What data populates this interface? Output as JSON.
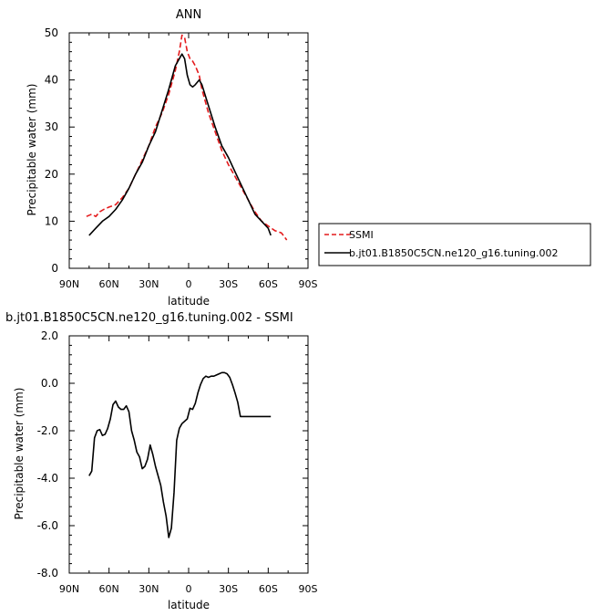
{
  "chart_data": [
    {
      "type": "line",
      "title": "ANN",
      "xlabel": "latitude",
      "ylabel": "Precipitable water (mm)",
      "xlim": [
        90,
        -90
      ],
      "ylim": [
        0,
        50
      ],
      "x_ticks": [
        {
          "value": 90,
          "label": "90N"
        },
        {
          "value": 60,
          "label": "60N"
        },
        {
          "value": 30,
          "label": "30N"
        },
        {
          "value": 0,
          "label": "0"
        },
        {
          "value": -30,
          "label": "30S"
        },
        {
          "value": -60,
          "label": "60S"
        },
        {
          "value": -90,
          "label": "90S"
        }
      ],
      "y_ticks": [
        {
          "value": 0,
          "label": "0"
        },
        {
          "value": 10,
          "label": "10"
        },
        {
          "value": 20,
          "label": "20"
        },
        {
          "value": 30,
          "label": "30"
        },
        {
          "value": 40,
          "label": "40"
        },
        {
          "value": 50,
          "label": "50"
        }
      ],
      "grid": false,
      "legend": "right",
      "series": [
        {
          "name": "SSMI",
          "color": "#e41a1c",
          "dash": "dashed",
          "x": [
            77,
            73,
            70,
            67,
            64,
            60,
            55,
            50,
            45,
            40,
            35,
            30,
            25,
            20,
            15,
            10,
            7,
            5,
            3,
            1,
            -1,
            -3,
            -5,
            -8,
            -10,
            -15,
            -20,
            -25,
            -30,
            -35,
            -40,
            -45,
            -50,
            -55,
            -60,
            -65,
            -70,
            -74
          ],
          "values": [
            11.0,
            11.5,
            11.0,
            12.0,
            12.5,
            13.0,
            13.5,
            15.0,
            17.0,
            20.0,
            23.0,
            26.0,
            30.0,
            33.0,
            37.0,
            42.0,
            46.0,
            49.5,
            49.0,
            46.0,
            44.5,
            44.0,
            43.0,
            41.0,
            38.0,
            33.0,
            29.0,
            25.0,
            22.0,
            19.5,
            17.0,
            14.5,
            12.0,
            10.0,
            9.0,
            8.0,
            7.5,
            6.0
          ]
        },
        {
          "name": "b.jt01.B1850C5CN.ne120_g16.tuning.002",
          "color": "#000000",
          "dash": "solid",
          "x": [
            75,
            70,
            65,
            60,
            55,
            50,
            45,
            40,
            35,
            30,
            25,
            20,
            15,
            10,
            5,
            3,
            1,
            -1,
            -3,
            -5,
            -8,
            -10,
            -15,
            -20,
            -25,
            -30,
            -35,
            -40,
            -45,
            -50,
            -55,
            -60,
            -62
          ],
          "values": [
            7.0,
            8.5,
            10.0,
            11.0,
            12.5,
            14.5,
            17.0,
            20.0,
            22.5,
            26.0,
            29.0,
            33.5,
            38.0,
            43.0,
            45.5,
            44.5,
            41.0,
            39.0,
            38.5,
            39.0,
            40.0,
            39.0,
            34.5,
            30.0,
            26.0,
            23.5,
            20.5,
            17.5,
            14.5,
            11.5,
            10.0,
            8.5,
            7.0
          ]
        }
      ]
    },
    {
      "type": "line",
      "title": "b.jt01.B1850C5CN.ne120_g16.tuning.002 - SSMI",
      "xlabel": "latitude",
      "ylabel": "Precipitable water (mm)",
      "xlim": [
        90,
        -90
      ],
      "ylim": [
        -8,
        2
      ],
      "x_ticks": [
        {
          "value": 90,
          "label": "90N"
        },
        {
          "value": 60,
          "label": "60N"
        },
        {
          "value": 30,
          "label": "30N"
        },
        {
          "value": 0,
          "label": "0"
        },
        {
          "value": -30,
          "label": "30S"
        },
        {
          "value": -60,
          "label": "60S"
        },
        {
          "value": -90,
          "label": "90S"
        }
      ],
      "y_ticks": [
        {
          "value": 2,
          "label": "2.0"
        },
        {
          "value": 0,
          "label": "0.0"
        },
        {
          "value": -2,
          "label": "-2.0"
        },
        {
          "value": -4,
          "label": "-4.0"
        },
        {
          "value": -6,
          "label": "-6.0"
        },
        {
          "value": -8,
          "label": "-8.0"
        }
      ],
      "grid": false,
      "series": [
        {
          "name": "",
          "color": "#000000",
          "dash": "solid",
          "x": [
            75,
            73,
            71,
            69,
            67,
            65,
            63,
            61,
            59,
            57,
            55,
            53,
            51,
            49,
            47,
            45,
            43,
            41,
            39,
            37,
            35,
            33,
            31,
            29,
            27,
            25,
            23,
            21,
            19,
            17,
            15,
            13,
            11,
            9,
            7,
            5,
            3,
            1,
            -1,
            -3,
            -5,
            -7,
            -9,
            -11,
            -13,
            -15,
            -17,
            -19,
            -21,
            -23,
            -25,
            -27,
            -29,
            -31,
            -33,
            -35,
            -37,
            -39,
            -41,
            -43,
            -45,
            -47,
            -49,
            -51,
            -53,
            -55,
            -57,
            -59,
            -61,
            -62
          ],
          "values": [
            -3.9,
            -3.7,
            -2.3,
            -2.0,
            -1.95,
            -2.2,
            -2.15,
            -1.9,
            -1.5,
            -0.9,
            -0.75,
            -1.0,
            -1.1,
            -1.1,
            -0.95,
            -1.2,
            -2.0,
            -2.4,
            -2.9,
            -3.1,
            -3.6,
            -3.5,
            -3.2,
            -2.6,
            -3.0,
            -3.5,
            -3.9,
            -4.3,
            -5.0,
            -5.6,
            -6.5,
            -6.1,
            -4.6,
            -2.4,
            -1.9,
            -1.7,
            -1.6,
            -1.5,
            -1.05,
            -1.1,
            -0.85,
            -0.4,
            -0.05,
            0.2,
            0.3,
            0.25,
            0.3,
            0.3,
            0.35,
            0.4,
            0.45,
            0.45,
            0.4,
            0.25,
            -0.05,
            -0.4,
            -0.8,
            -1.4,
            -1.4,
            -1.4,
            -1.4,
            -1.4,
            -1.4,
            -1.4,
            -1.4,
            -1.4,
            -1.4,
            -1.4,
            -1.4,
            -1.4
          ]
        }
      ]
    }
  ]
}
